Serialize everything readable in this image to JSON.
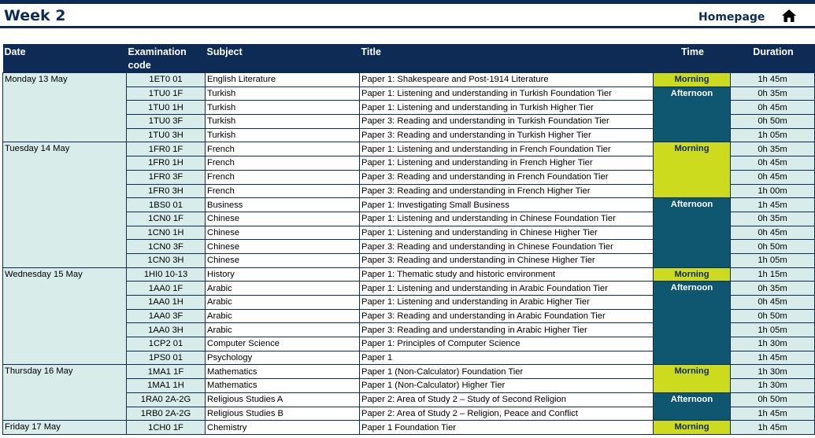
{
  "header": {
    "title": "Week 2",
    "homepage_label": "Homepage",
    "home_icon": "home-icon"
  },
  "colors": {
    "navy": "#0d2b55",
    "light_teal": "#d8ece9",
    "morning_lime": "#ccdb1e",
    "afternoon_teal": "#0f5670"
  },
  "columns": {
    "date": "Date",
    "code": "Examination code",
    "subject": "Subject",
    "title": "Title",
    "time": "Time",
    "duration": "Duration"
  },
  "days": [
    {
      "date": "Monday 13 May",
      "sessions": [
        {
          "time": "Morning",
          "exams": [
            {
              "code": "1ET0 01",
              "subject": "English Literature",
              "title": "Paper 1: Shakespeare and Post-1914 Literature",
              "duration": "1h 45m"
            }
          ]
        },
        {
          "time": "Afternoon",
          "exams": [
            {
              "code": "1TU0 1F",
              "subject": "Turkish",
              "title": "Paper 1: Listening and understanding in Turkish Foundation Tier",
              "duration": "0h 35m"
            },
            {
              "code": "1TU0 1H",
              "subject": "Turkish",
              "title": "Paper 1: Listening and understanding in Turkish Higher Tier",
              "duration": "0h 45m"
            },
            {
              "code": "1TU0 3F",
              "subject": "Turkish",
              "title": "Paper 3: Reading and understanding in Turkish Foundation Tier",
              "duration": "0h 50m"
            },
            {
              "code": "1TU0 3H",
              "subject": "Turkish",
              "title": "Paper 3: Reading and understanding in Turkish Higher Tier",
              "duration": "1h 05m"
            }
          ]
        }
      ]
    },
    {
      "date": "Tuesday 14 May",
      "sessions": [
        {
          "time": "Morning",
          "exams": [
            {
              "code": "1FR0 1F",
              "subject": "French",
              "title": "Paper 1: Listening and understanding in French Foundation Tier",
              "duration": "0h 35m"
            },
            {
              "code": "1FR0 1H",
              "subject": "French",
              "title": "Paper 1: Listening and understanding in French Higher Tier",
              "duration": "0h 45m"
            },
            {
              "code": "1FR0 3F",
              "subject": "French",
              "title": "Paper 3: Reading and understanding in French Foundation Tier",
              "duration": "0h 45m"
            },
            {
              "code": "1FR0 3H",
              "subject": "French",
              "title": "Paper 3: Reading and understanding in French Higher Tier",
              "duration": "1h 00m"
            }
          ]
        },
        {
          "time": "Afternoon",
          "exams": [
            {
              "code": "1BS0 01",
              "subject": "Business",
              "title": "Paper 1: Investigating Small Business",
              "duration": "1h 45m"
            },
            {
              "code": "1CN0 1F",
              "subject": "Chinese",
              "title": "Paper 1: Listening and understanding in Chinese Foundation Tier",
              "duration": "0h 35m"
            },
            {
              "code": "1CN0 1H",
              "subject": "Chinese",
              "title": "Paper 1: Listening and understanding in Chinese Higher Tier",
              "duration": "0h 45m"
            },
            {
              "code": "1CN0 3F",
              "subject": "Chinese",
              "title": "Paper 3: Reading and understanding in Chinese Foundation Tier",
              "duration": "0h 50m"
            },
            {
              "code": "1CN0 3H",
              "subject": "Chinese",
              "title": "Paper 3: Reading and understanding in Chinese Higher Tier",
              "duration": "1h 05m"
            }
          ]
        }
      ]
    },
    {
      "date": "Wednesday 15 May",
      "sessions": [
        {
          "time": "Morning",
          "exams": [
            {
              "code": "1HI0 10-13",
              "subject": "History",
              "title": "Paper 1: Thematic study and historic environment",
              "duration": "1h 15m"
            }
          ]
        },
        {
          "time": "Afternoon",
          "exams": [
            {
              "code": "1AA0 1F",
              "subject": "Arabic",
              "title": "Paper 1: Listening and understanding in Arabic Foundation Tier",
              "duration": "0h 35m"
            },
            {
              "code": "1AA0 1H",
              "subject": "Arabic",
              "title": "Paper 1: Listening and understanding in Arabic Higher Tier",
              "duration": "0h 45m"
            },
            {
              "code": "1AA0 3F",
              "subject": "Arabic",
              "title": "Paper 3: Reading and understanding in Arabic Foundation Tier",
              "duration": "0h 50m"
            },
            {
              "code": "1AA0 3H",
              "subject": "Arabic",
              "title": "Paper 3: Reading and understanding in Arabic Higher Tier",
              "duration": "1h 05m"
            },
            {
              "code": "1CP2 01",
              "subject": "Computer Science",
              "title": "Paper 1: Principles of Computer Science",
              "duration": "1h 30m"
            },
            {
              "code": "1PS0 01",
              "subject": "Psychology",
              "title": "Paper 1",
              "duration": "1h 45m"
            }
          ]
        }
      ]
    },
    {
      "date": "Thursday 16 May",
      "sessions": [
        {
          "time": "Morning",
          "exams": [
            {
              "code": "1MA1 1F",
              "subject": "Mathematics",
              "title": "Paper 1 (Non-Calculator) Foundation Tier",
              "duration": "1h 30m"
            },
            {
              "code": "1MA1 1H",
              "subject": "Mathematics",
              "title": "Paper 1 (Non-Calculator) Higher Tier",
              "duration": "1h 30m"
            }
          ]
        },
        {
          "time": "Afternoon",
          "exams": [
            {
              "code": "1RA0 2A-2G",
              "subject": "Religious Studies A",
              "title": "Paper 2: Area of Study 2 – Study of Second Religion",
              "duration": "0h 50m"
            },
            {
              "code": "1RB0 2A-2G",
              "subject": "Religious Studies B",
              "title": "Paper 2: Area of Study 2 – Religion, Peace and Conflict",
              "duration": "1h 45m"
            }
          ]
        }
      ]
    },
    {
      "date": "Friday 17 May",
      "sessions": [
        {
          "time": "Morning",
          "exams": [
            {
              "code": "1CH0 1F",
              "subject": "Chemistry",
              "title": "Paper 1 Foundation Tier",
              "duration": "1h 45m"
            }
          ]
        }
      ]
    }
  ]
}
